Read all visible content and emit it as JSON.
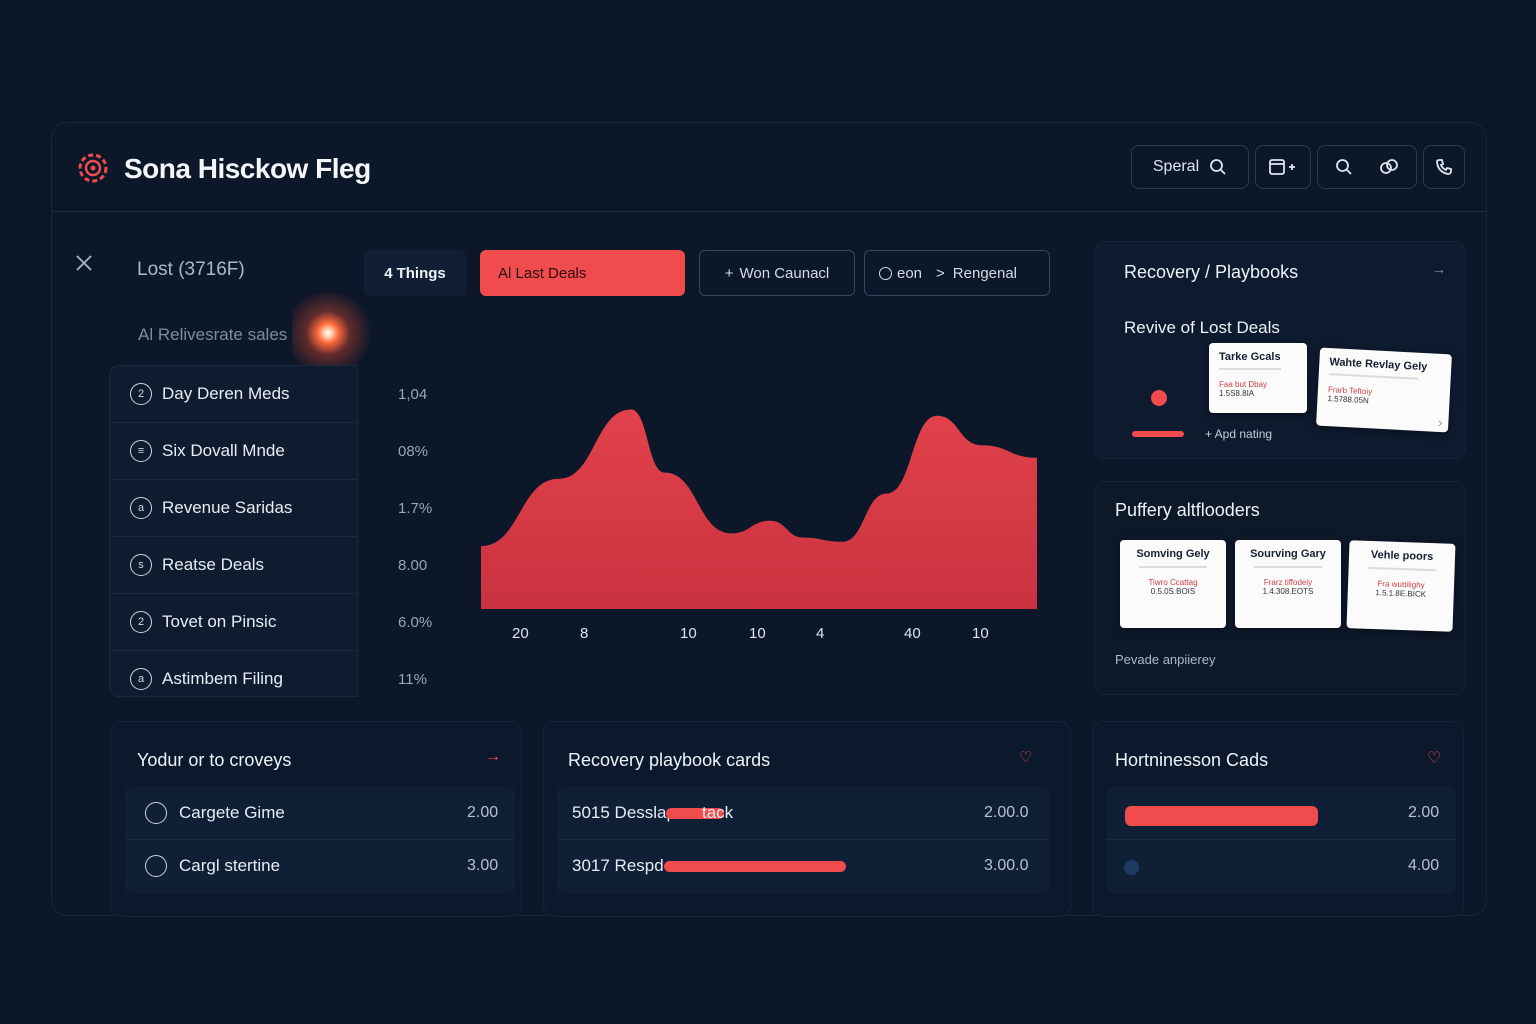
{
  "app": {
    "title": "Sona Hisckow Fleg",
    "accent": "#f04b4d"
  },
  "header": {
    "search_label": "Speral",
    "icons": [
      "search-icon",
      "calendar-add-icon",
      "search-icon",
      "link-icon",
      "phone-icon"
    ]
  },
  "left": {
    "heading": "Lost (3716F)",
    "subheading": "Al Relivesrate sales",
    "items": [
      {
        "label": "Day Deren Meds",
        "icon": "2",
        "value": "1,04"
      },
      {
        "label": "Six Dovall Mnde",
        "icon": "≡",
        "value": "08%"
      },
      {
        "label": "Revenue Saridas",
        "icon": "a",
        "value": "1.7%"
      },
      {
        "label": "Reatse Deals",
        "icon": "s",
        "value": "8.00"
      },
      {
        "label": "Tovet on Pinsic",
        "icon": "2",
        "value": "6.0%"
      },
      {
        "label": "Astimbem Filing",
        "icon": "a",
        "value": "11%"
      }
    ]
  },
  "tabs": [
    {
      "label": "Things",
      "icon": "4"
    },
    {
      "label": "Al Last Deals"
    },
    {
      "label": "Won Caunacl",
      "icon": "+"
    },
    {
      "label": "Rengenal",
      "prefix": "eon"
    }
  ],
  "chart_data": {
    "type": "area",
    "categories": [
      "20",
      "8",
      "10",
      "10",
      "4",
      "40",
      "10"
    ],
    "fill": "#d63c46",
    "points": [
      [
        0,
        30
      ],
      [
        0.14,
        62
      ],
      [
        0.27,
        95
      ],
      [
        0.33,
        65
      ],
      [
        0.45,
        36
      ],
      [
        0.52,
        42
      ],
      [
        0.58,
        34
      ],
      [
        0.65,
        32
      ],
      [
        0.73,
        55
      ],
      [
        0.82,
        92
      ],
      [
        0.9,
        78
      ],
      [
        1,
        72
      ]
    ]
  },
  "recovery": {
    "title": "Recovery / Playbooks",
    "subtitle": "Revive of  Lost Deals",
    "add_label": "+ Apd nating",
    "cards": [
      {
        "title": "Tarke Gcals",
        "sub": "Faa but Dbay",
        "val": "1.5S8.8IA"
      },
      {
        "title": "Wahte Revlay Gely",
        "sub": "Frarb Teftoiy",
        "val": "1.5788.05N"
      }
    ]
  },
  "puffery": {
    "title": "Puffery altflooders",
    "cards": [
      {
        "title": "Somving Gely",
        "sub": "Tiwro Ccattag",
        "val": "0.5.0S.BOIS"
      },
      {
        "title": "Sourving Gary",
        "sub": "Frarz tiffodeiy",
        "val": "1.4.308.EOTS"
      },
      {
        "title": "Vehle poors",
        "sub": "Fra wuttilighy",
        "val": "1.5.1.8E.BICK"
      }
    ],
    "footer": "Pevade anpiierey"
  },
  "bottom": {
    "card1": {
      "title": "Yodur or to croveys",
      "rows": [
        {
          "label": "Cargete Gime",
          "value": "2.00"
        },
        {
          "label": "Cargl stertine",
          "value": "3.00"
        }
      ]
    },
    "card2": {
      "title": "Recovery playbook cards",
      "rows": [
        {
          "label": "5015 Desslap",
          "suffix": "tack",
          "value": "2.00.0",
          "bar": 0.12
        },
        {
          "label": "3017 Respd",
          "value": "3.00.0",
          "bar": 0.38
        }
      ]
    },
    "card3": {
      "title": "Hortninesson Cads",
      "rows": [
        {
          "value": "2.00",
          "bar": 0.6
        },
        {
          "value": "4.00",
          "bar": 0
        }
      ]
    }
  }
}
